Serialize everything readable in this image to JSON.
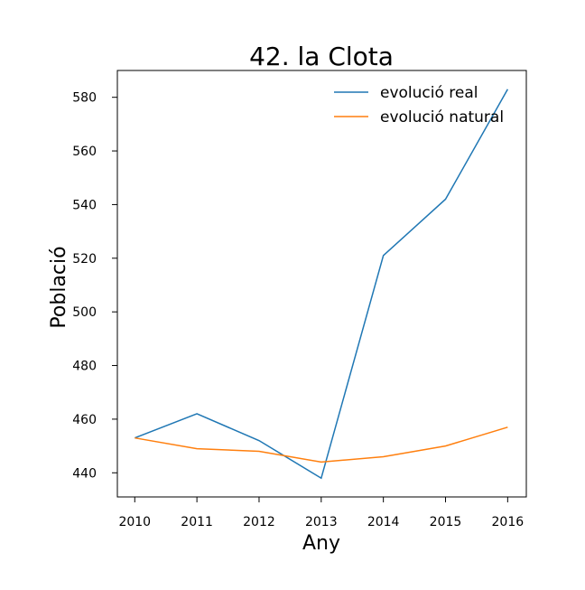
{
  "chart_data": {
    "type": "line",
    "title": "42. la Clota",
    "xlabel": "Any",
    "ylabel": "Població",
    "x": [
      2010,
      2011,
      2012,
      2013,
      2014,
      2015,
      2016
    ],
    "xlim": [
      2009.72,
      2016.3
    ],
    "ylim": [
      431,
      590
    ],
    "yticks": [
      440,
      460,
      480,
      500,
      520,
      540,
      560,
      580
    ],
    "grid": false,
    "legend_position": "top-right",
    "series": [
      {
        "name": "evolució real",
        "color": "#1f77b4",
        "values": [
          453,
          462,
          452,
          438,
          521,
          542,
          583
        ]
      },
      {
        "name": "evolució natural",
        "color": "#ff7f0e",
        "values": [
          453,
          449,
          448,
          444,
          446,
          450,
          457
        ]
      }
    ]
  }
}
